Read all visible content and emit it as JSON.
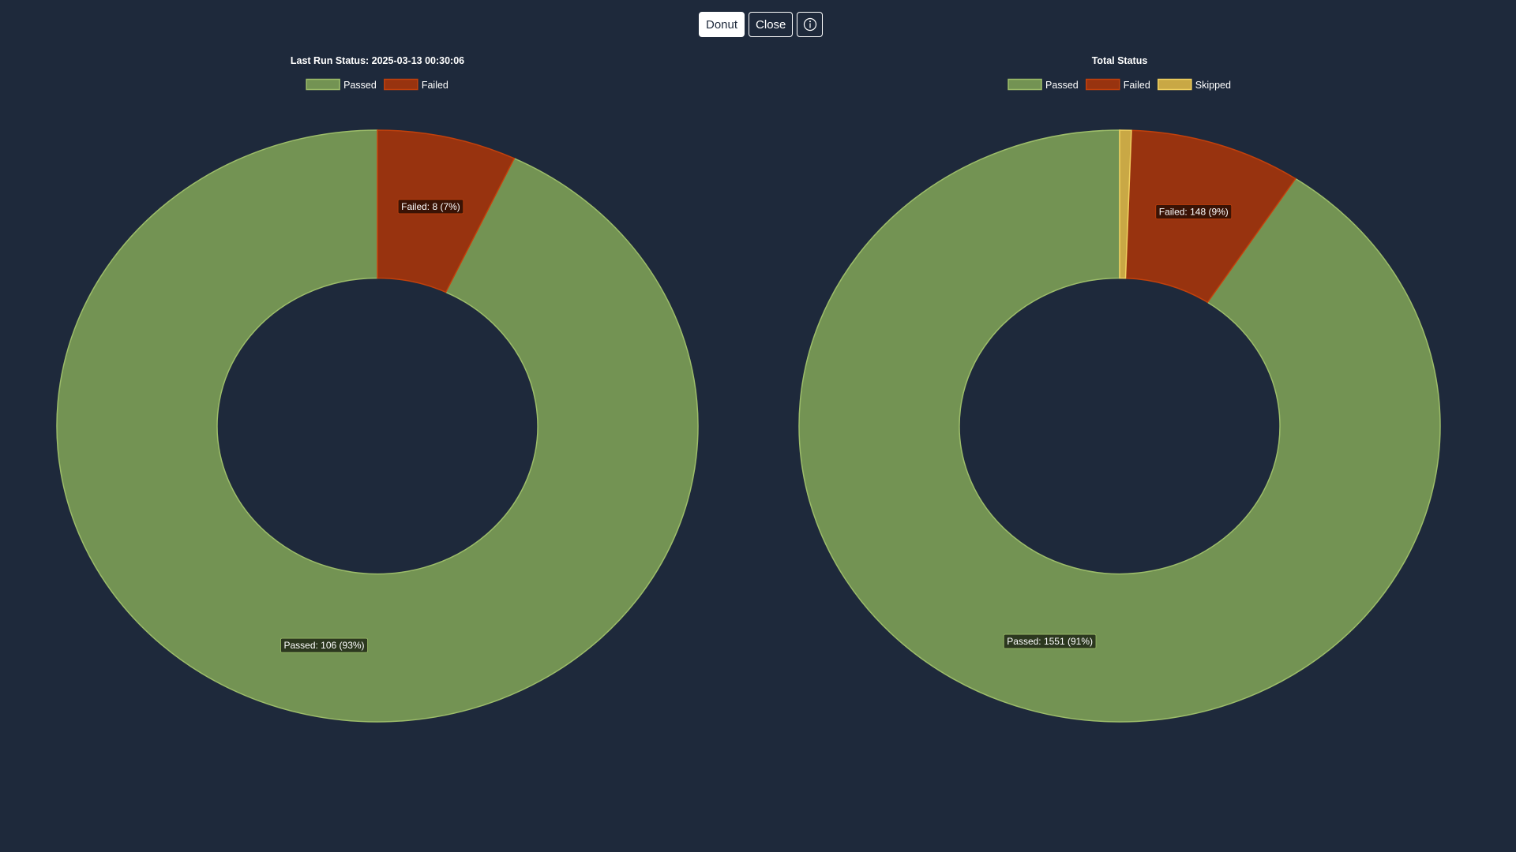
{
  "toolbar": {
    "donut_label": "Donut",
    "close_label": "Close",
    "info_icon": "info-circle-icon"
  },
  "colors": {
    "background": "#1e293b",
    "passed": "#739353",
    "passed_border": "#9dbd6a",
    "failed": "#98330f",
    "failed_border": "#c2410c",
    "skipped": "#c9a845",
    "skipped_border": "#f0d060"
  },
  "chart_data": [
    {
      "type": "donut",
      "title": "Last Run Status: 2025-03-13 00:30:06",
      "legend": [
        "Passed",
        "Failed"
      ],
      "legend_position": "top",
      "slices": [
        {
          "label": "Passed",
          "value": 106,
          "color": "#739353",
          "border": "#9dbd6a",
          "data_label": "Passed: 106 (93%)"
        },
        {
          "label": "Failed",
          "value": 8,
          "color": "#98330f",
          "border": "#c2410c",
          "data_label": "Failed: 8 (7%)"
        }
      ]
    },
    {
      "type": "donut",
      "title": "Total Status",
      "legend": [
        "Passed",
        "Failed",
        "Skipped"
      ],
      "legend_position": "top",
      "slices": [
        {
          "label": "Passed",
          "value": 1551,
          "color": "#739353",
          "border": "#9dbd6a",
          "data_label": "Passed: 1551 (91%)"
        },
        {
          "label": "Failed",
          "value": 148,
          "color": "#98330f",
          "border": "#c2410c",
          "data_label": "Failed: 148 (9%)"
        },
        {
          "label": "Skipped",
          "value": 10,
          "color": "#c9a845",
          "border": "#f0d060",
          "data_label": ""
        }
      ]
    }
  ]
}
